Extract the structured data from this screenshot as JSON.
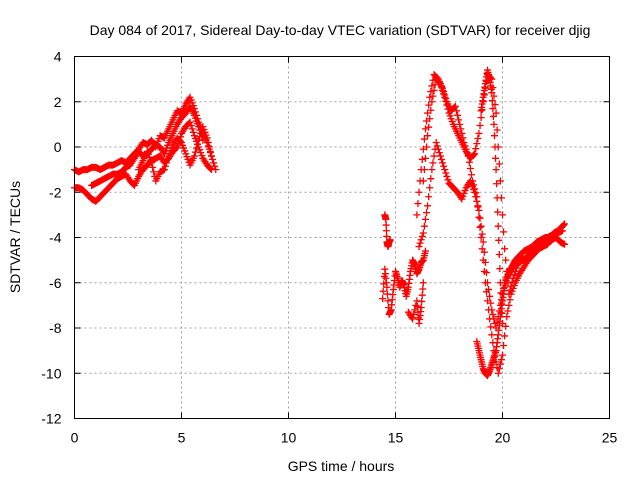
{
  "chart_data": {
    "type": "scatter",
    "title": "Day 084 of 2017, Sidereal Day-to-day VTEC variation (SDTVAR) for receiver djig",
    "xlabel": "GPS time / hours",
    "ylabel": "SDTVAR / TECUs",
    "xlim": [
      0,
      25
    ],
    "ylim": [
      -12,
      4
    ],
    "xticks": [
      "0",
      "5",
      "10",
      "15",
      "20",
      "25"
    ],
    "yticks": [
      "4",
      "2",
      "0",
      "-2",
      "-4",
      "-6",
      "-8",
      "-10",
      "-12"
    ],
    "grid": true,
    "marker": "plus",
    "color": "#ff0000",
    "series": [
      {
        "x": [
          0.0,
          0.2,
          0.4,
          0.6,
          0.8,
          1.0,
          1.2,
          1.4,
          1.6,
          1.8,
          2.0,
          2.2,
          2.4,
          2.6,
          2.8,
          3.0,
          3.2,
          3.4,
          3.6,
          3.8,
          4.0,
          4.2,
          4.4,
          4.6,
          4.8,
          5.0,
          5.2,
          5.4,
          5.6,
          5.8,
          6.0,
          6.2,
          6.4
        ],
        "y": [
          -1.0,
          -1.1,
          -1.0,
          -1.0,
          -0.9,
          -0.9,
          -1.0,
          -0.9,
          -0.8,
          -0.8,
          -0.7,
          -0.6,
          -0.7,
          -0.5,
          -0.3,
          -0.1,
          0.2,
          0.1,
          0.3,
          0.0,
          0.5,
          0.4,
          0.8,
          1.2,
          1.6,
          1.5,
          1.9,
          2.2,
          1.7,
          1.1,
          0.6,
          0.2,
          -0.4
        ]
      },
      {
        "x": [
          0.0,
          0.2,
          0.4,
          0.6,
          0.8,
          1.0,
          1.2,
          1.4,
          1.6,
          1.8,
          2.0,
          2.2,
          2.4,
          2.6,
          2.8,
          3.0,
          3.2,
          3.4,
          3.6,
          3.8,
          4.0,
          4.2,
          4.4,
          4.6,
          4.8,
          5.0,
          5.2,
          5.4,
          5.6,
          5.8,
          6.0,
          6.2,
          6.4
        ],
        "y": [
          -1.8,
          -1.8,
          -1.9,
          -2.1,
          -2.3,
          -2.4,
          -2.2,
          -2.0,
          -1.8,
          -1.6,
          -1.4,
          -1.3,
          -1.2,
          -1.5,
          -1.7,
          -1.3,
          -1.0,
          -0.8,
          -0.6,
          -0.5,
          -0.4,
          -0.7,
          -0.5,
          -0.2,
          0.0,
          0.6,
          0.9,
          1.1,
          0.5,
          0.0,
          -0.5,
          -0.8,
          -1.0
        ]
      },
      {
        "x": [
          0.8,
          1.0,
          1.2,
          1.4,
          1.6,
          1.8,
          2.0,
          2.2,
          2.4,
          2.6,
          2.8,
          3.0,
          3.2,
          3.4,
          3.6,
          3.8,
          4.0,
          4.2,
          4.4,
          4.6,
          4.8,
          5.0,
          5.2,
          5.4,
          5.6,
          5.8,
          6.0
        ],
        "y": [
          -1.7,
          -1.6,
          -1.5,
          -1.4,
          -1.3,
          -1.2,
          -1.2,
          -1.1,
          -0.9,
          -0.8,
          -0.5,
          -0.2,
          -0.4,
          -0.3,
          -0.1,
          0.1,
          0.0,
          -0.3,
          0.2,
          0.6,
          1.0,
          1.3,
          1.5,
          1.8,
          1.4,
          0.9,
          0.3
        ]
      },
      {
        "x": [
          3.0,
          3.2,
          3.4,
          3.6,
          3.8,
          4.0,
          4.2,
          4.4,
          4.6,
          4.8,
          5.0,
          5.2,
          5.4,
          5.6,
          5.8,
          6.0,
          6.2,
          6.4,
          6.6
        ],
        "y": [
          -1.0,
          -0.6,
          -0.2,
          -0.7,
          -1.5,
          -1.1,
          -1.0,
          -0.4,
          0.1,
          0.4,
          0.2,
          -0.3,
          -0.8,
          -0.4,
          0.3,
          0.9,
          0.4,
          -0.4,
          -1.0
        ]
      },
      {
        "x": [
          14.5,
          14.55,
          14.6,
          14.65,
          14.7,
          14.75
        ],
        "y": [
          -3.0,
          -3.2,
          -4.2,
          -4.4,
          -4.2,
          -4.1
        ]
      },
      {
        "x": [
          14.4,
          14.5,
          14.6,
          14.7,
          14.8,
          14.9,
          15.0,
          15.1,
          15.2,
          15.3,
          15.4,
          15.5,
          15.6,
          15.7,
          15.8,
          15.9,
          16.0,
          16.1,
          16.2,
          16.3,
          16.4
        ],
        "y": [
          -6.7,
          -5.4,
          -6.2,
          -7.4,
          -7.2,
          -6.3,
          -5.5,
          -5.8,
          -6.2,
          -5.9,
          -6.1,
          -6.6,
          -6.2,
          -5.5,
          -5.0,
          -5.2,
          -5.6,
          -5.4,
          -5.1,
          -5.0,
          -4.6
        ]
      },
      {
        "x": [
          15.6,
          15.8,
          16.0,
          16.1,
          16.2,
          16.3
        ],
        "y": [
          -7.3,
          -7.6,
          -6.8,
          -7.8,
          -7.1,
          -6.0
        ]
      },
      {
        "x": [
          16.0,
          16.2,
          16.4,
          16.6,
          16.8,
          17.0,
          17.2,
          17.4,
          17.6,
          17.8,
          18.0,
          18.2,
          18.4,
          18.6,
          18.8,
          19.0,
          19.2,
          19.4,
          19.6,
          19.8,
          20.0,
          20.2,
          20.4,
          20.6,
          20.8,
          21.0,
          21.2,
          21.4,
          21.6,
          21.8,
          22.0,
          22.2,
          22.4,
          22.6,
          22.8
        ],
        "y": [
          -3.0,
          -1.0,
          0.8,
          2.2,
          3.2,
          3.0,
          2.6,
          2.0,
          1.6,
          1.8,
          1.0,
          0.2,
          -0.4,
          -1.5,
          -2.2,
          -4.0,
          -6.0,
          -7.6,
          -9.0,
          -10.0,
          -9.2,
          -7.5,
          -6.5,
          -6.0,
          -5.6,
          -5.3,
          -5.0,
          -4.8,
          -4.6,
          -4.3,
          -4.2,
          -4.0,
          -3.8,
          -3.7,
          -3.5
        ]
      },
      {
        "x": [
          16.3,
          16.5,
          16.7,
          16.9,
          17.1,
          17.3,
          17.5,
          17.7,
          17.9,
          18.1,
          18.3,
          18.5,
          18.7,
          18.9,
          19.1,
          19.3,
          19.5,
          19.7,
          19.9,
          20.1,
          20.3,
          20.5,
          20.7,
          20.9,
          21.1,
          21.3,
          21.5,
          21.7,
          21.9,
          22.1,
          22.3,
          22.5,
          22.7,
          22.9
        ],
        "y": [
          -1.5,
          0.5,
          2.0,
          3.0,
          2.8,
          2.2,
          1.5,
          1.0,
          0.6,
          0.2,
          -0.2,
          -0.5,
          -0.3,
          0.6,
          2.0,
          3.2,
          3.0,
          1.5,
          -1.5,
          -4.5,
          -6.5,
          -5.8,
          -5.2,
          -5.0,
          -5.0,
          -4.6,
          -4.4,
          -4.2,
          -4.3,
          -4.0,
          -3.9,
          -3.8,
          -3.6,
          -3.4
        ]
      },
      {
        "x": [
          16.1,
          16.3,
          16.5,
          16.7,
          16.9,
          17.1,
          17.3,
          17.5,
          17.7,
          17.9,
          18.1,
          18.3,
          18.5,
          18.7,
          18.9,
          19.1,
          19.3,
          19.5,
          19.7,
          19.9,
          20.1,
          20.3,
          20.5,
          20.7,
          20.9,
          21.1,
          21.3,
          21.5,
          21.7,
          21.9,
          22.1,
          22.3,
          22.5,
          22.7,
          22.9
        ],
        "y": [
          -4.4,
          -3.8,
          -2.6,
          -1.0,
          0.2,
          -0.4,
          -1.0,
          -1.6,
          -1.8,
          -2.0,
          -2.3,
          -1.8,
          -1.5,
          -2.0,
          -2.8,
          -4.2,
          -6.0,
          -7.2,
          -8.0,
          -7.0,
          -6.0,
          -5.5,
          -5.2,
          -4.9,
          -5.0,
          -4.9,
          -4.7,
          -4.6,
          -4.5,
          -4.4,
          -4.3,
          -4.1,
          -4.0,
          -4.2,
          -4.3
        ]
      },
      {
        "x": [
          18.8,
          18.9,
          19.0,
          19.1,
          19.2,
          19.3,
          19.4,
          19.5,
          19.6,
          19.7,
          19.8,
          19.9,
          20.0,
          20.1,
          20.2,
          20.3,
          20.4,
          20.5,
          20.6,
          20.8,
          21.0,
          21.2,
          21.4,
          21.6,
          21.8,
          22.0,
          22.2,
          22.4,
          22.6,
          22.8
        ],
        "y": [
          -8.6,
          -9.0,
          -9.4,
          -9.8,
          -10.0,
          -10.1,
          -9.9,
          -9.6,
          -9.3,
          -9.0,
          -8.3,
          -7.5,
          -6.8,
          -6.2,
          -5.8,
          -5.6,
          -5.4,
          -5.2,
          -5.0,
          -4.8,
          -4.6,
          -4.5,
          -4.4,
          -4.2,
          -4.1,
          -4.0,
          -4.0,
          -3.9,
          -3.8,
          -3.7
        ]
      },
      {
        "x": [
          19.0,
          19.1,
          19.2,
          19.3,
          19.4,
          19.5,
          19.6,
          19.7,
          19.8,
          19.9,
          20.0
        ],
        "y": [
          1.6,
          2.2,
          2.8,
          3.4,
          3.0,
          2.4,
          1.0,
          -1.0,
          -3.5,
          -6.0,
          -7.8
        ]
      }
    ]
  }
}
